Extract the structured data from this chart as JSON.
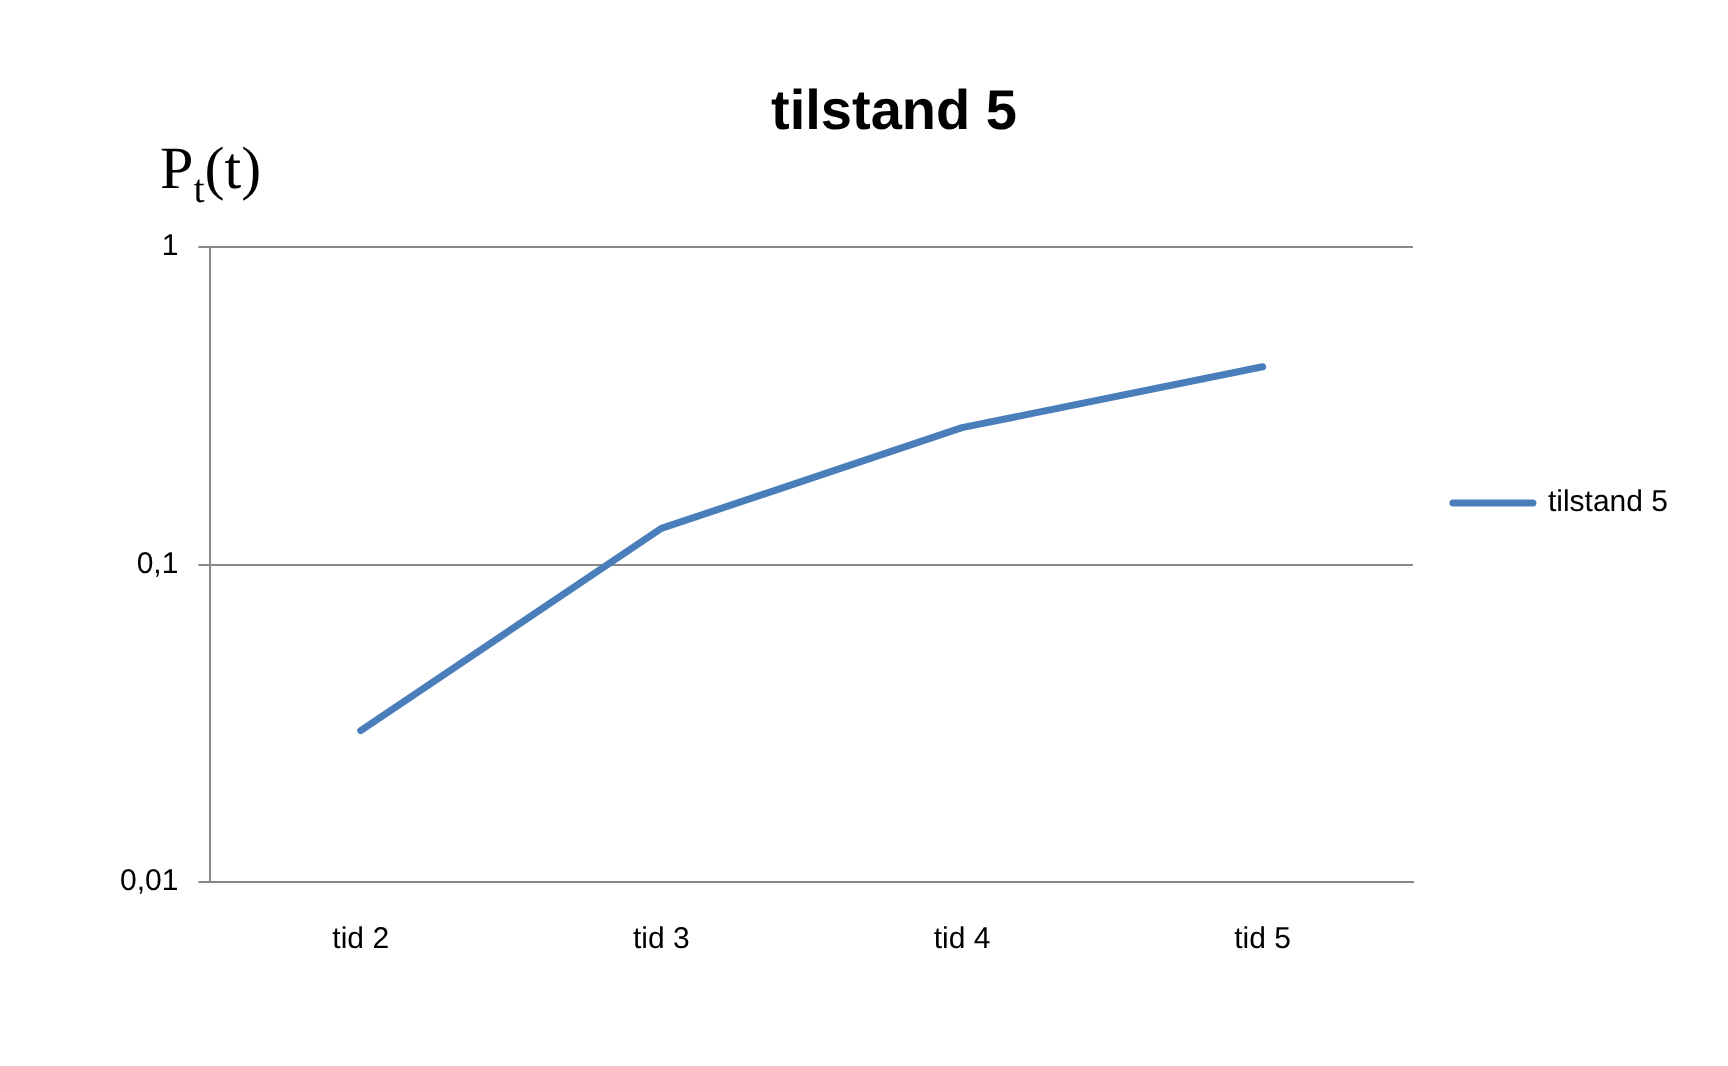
{
  "chart_data": {
    "type": "line",
    "title": "tilstand 5",
    "ylabel": "P$_{t}$(t)",
    "categories": [
      "tid 2",
      "tid 3",
      "tid 4",
      "tid 5"
    ],
    "series": [
      {
        "name": "tilstand 5",
        "color": "#4a7ebb",
        "values": [
          0.03,
          0.13,
          0.27,
          0.42
        ]
      }
    ],
    "log": "y",
    "ylim": [
      0.01,
      1
    ],
    "yticks": [
      {
        "value": 0.01,
        "label": "0,01"
      },
      {
        "value": 0.1,
        "label": "0,1"
      },
      1
    ],
    "grid": "y",
    "legend": "right"
  }
}
